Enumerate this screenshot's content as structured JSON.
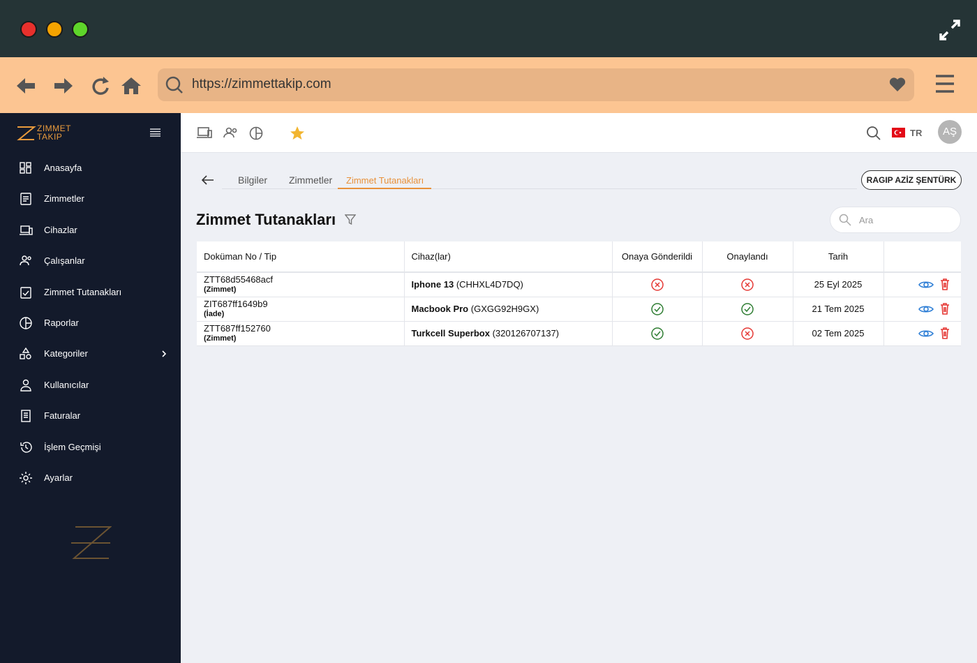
{
  "browser": {
    "url": "https://zimmettakip.com"
  },
  "sidebar": {
    "logo": [
      "ZIMMET",
      "TAKIP"
    ],
    "menu": [
      "Anasayfa",
      "Zimmetler",
      "Cihazlar",
      "Çalışanlar",
      "Zimmet Tutanakları",
      "Raporlar",
      "Kategoriler",
      "Kullanıcılar",
      "Faturalar",
      "İşlem Geçmişi",
      "Ayarlar"
    ],
    "expandable": [
      6
    ]
  },
  "topbar": {
    "language": "TR",
    "avatar": "AŞ"
  },
  "tabs": {
    "items": [
      "Bilgiler",
      "Zimmetler",
      "Zimmet Tutanakları"
    ],
    "active": 2
  },
  "person": "RAGIP AZİZ ŞENTÜRK",
  "page": {
    "title": "Zimmet Tutanakları",
    "search_placeholder": "Ara"
  },
  "table": {
    "headers": [
      "Doküman No / Tip",
      "Cihaz(lar)",
      "Onaya Gönderildi",
      "Onaylandı",
      "Tarih"
    ],
    "rows": [
      {
        "doc": "ZTT68d55468acf",
        "type": "(Zimmet)",
        "device": "Iphone 13",
        "serial": "(CHHXL4D7DQ)",
        "sent": false,
        "approved": false,
        "date": "25 Eyl 2025"
      },
      {
        "doc": "ZIT687ff1649b9",
        "type": "(İade)",
        "device": "Macbook Pro",
        "serial": "(GXGG92H9GX)",
        "sent": true,
        "approved": true,
        "date": "21 Tem 2025"
      },
      {
        "doc": "ZTT687ff152760",
        "type": "(Zimmet)",
        "device": "Turkcell Superbox",
        "serial": "(320126707137)",
        "sent": true,
        "approved": false,
        "date": "02 Tem 2025"
      }
    ]
  }
}
